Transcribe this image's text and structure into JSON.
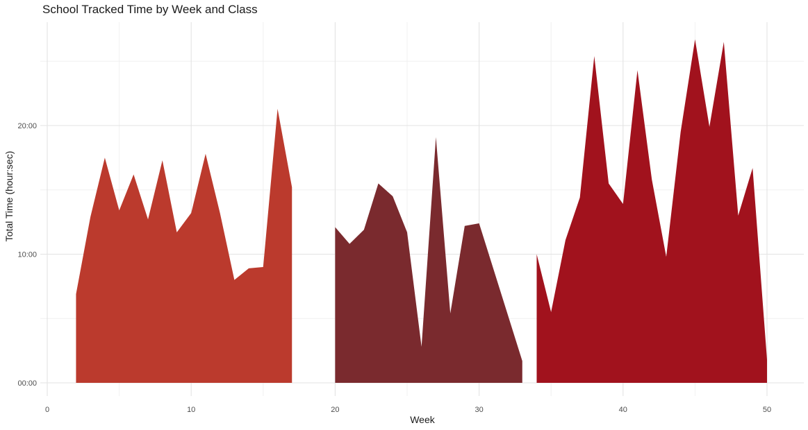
{
  "chart_data": {
    "type": "area",
    "title": "School Tracked Time by Week and Class",
    "xlabel": "Week",
    "ylabel": "Total Time (hour:sec)",
    "xlim": [
      -1,
      52.3
    ],
    "ylim": [
      -0.4,
      26.8
    ],
    "x_ticks": [
      0,
      10,
      20,
      30,
      40,
      50
    ],
    "x_tick_labels": [
      "0",
      "10",
      "20",
      "30",
      "40",
      "50"
    ],
    "y_ticks": [
      0,
      10,
      20
    ],
    "y_tick_labels": [
      "00:00",
      "10:00",
      "20:00"
    ],
    "x_minor_ticks": [
      5,
      15,
      25,
      35,
      45
    ],
    "y_minor_ticks": [
      5,
      15,
      25
    ],
    "grid": true,
    "legend": "none",
    "series": [
      {
        "color": "#BB3A2D",
        "x": [
          2,
          3,
          4,
          5,
          6,
          7,
          8,
          9,
          10,
          11,
          12,
          13,
          14,
          15,
          16,
          17
        ],
        "values": [
          6.9,
          12.9,
          17.5,
          13.4,
          16.2,
          12.7,
          17.3,
          11.7,
          13.2,
          17.8,
          13.2,
          8.0,
          8.9,
          9.0,
          21.3,
          15.2
        ]
      },
      {
        "color": "#7A2A2E",
        "x": [
          20,
          21,
          22,
          23,
          24,
          25,
          26,
          27,
          28,
          29,
          30,
          33
        ],
        "values": [
          12.1,
          10.8,
          11.9,
          15.5,
          14.5,
          11.7,
          2.8,
          19.1,
          5.4,
          12.2,
          12.4,
          1.7
        ]
      },
      {
        "color": "#A1121D",
        "x": [
          34,
          35,
          36,
          37,
          38,
          39,
          40,
          41,
          42,
          43,
          44,
          45,
          46,
          47,
          48,
          49,
          50
        ],
        "values": [
          10.0,
          5.5,
          11.1,
          14.4,
          25.4,
          15.5,
          13.9,
          24.3,
          15.8,
          9.8,
          19.5,
          26.7,
          19.9,
          26.5,
          13.0,
          16.7,
          1.8
        ]
      }
    ]
  }
}
